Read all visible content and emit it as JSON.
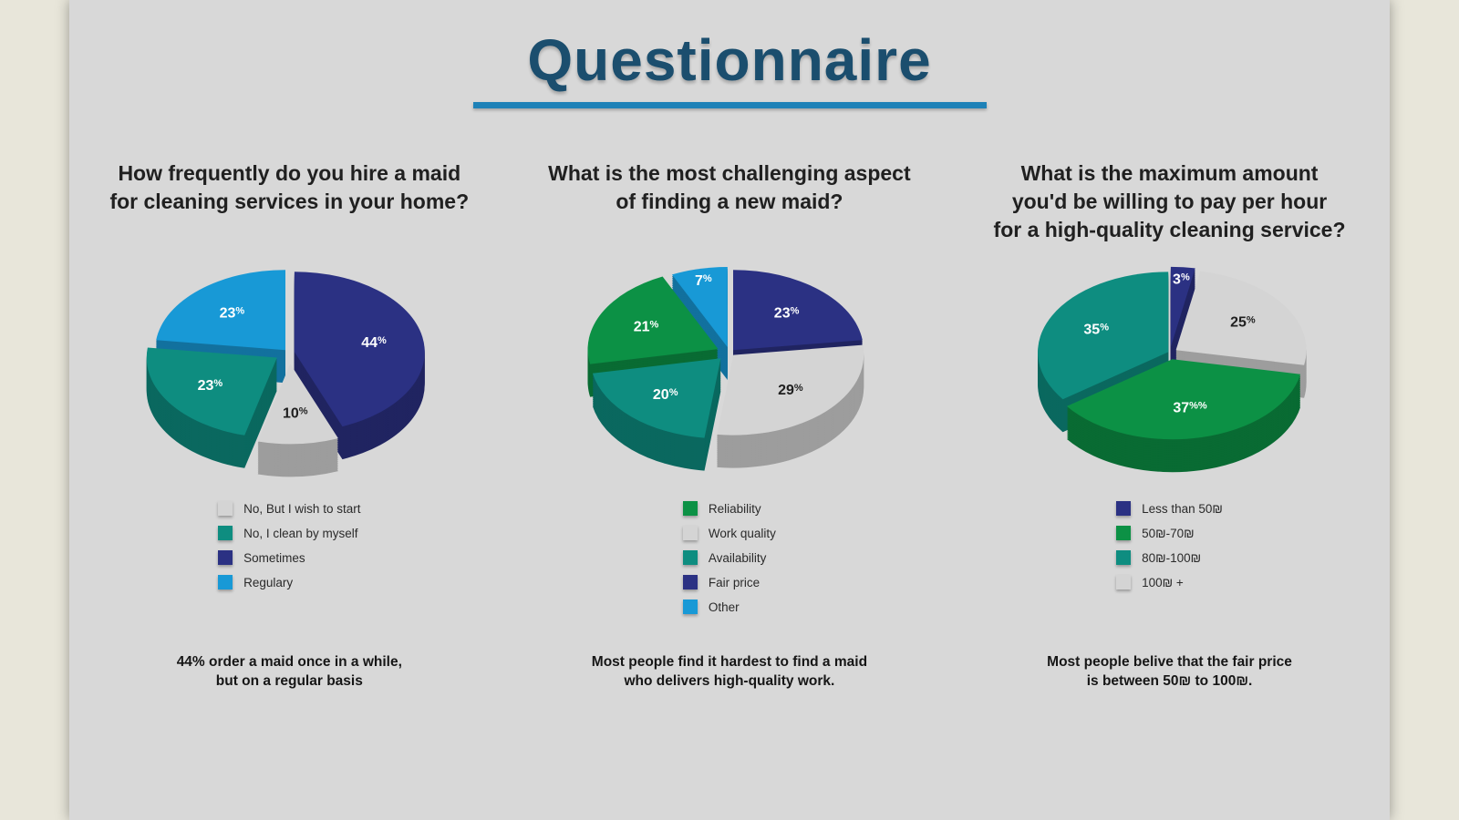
{
  "title": {
    "text": "Questionnaire",
    "color": "#1b4e6e",
    "underline_color": "#1e81b7"
  },
  "background": {
    "workspace": "#e8e6da",
    "slide": "#d8d8d8"
  },
  "columns": [
    {
      "question": [
        "How frequently do you hire a maid",
        "for cleaning services in your home?"
      ],
      "caption": [
        "44% order a maid once in a while,",
        "but on a regular basis"
      ]
    },
    {
      "question": [
        "What is the most challenging aspect",
        "of finding a new maid?"
      ],
      "caption": [
        "Most people find it hardest to find a maid",
        "who delivers high-quality work."
      ]
    },
    {
      "question": [
        "What is the maximum amount",
        "you'd be willing to pay per hour",
        "for a high-quality cleaning service?"
      ],
      "caption": [
        "Most people belive that the fair price",
        "is between 50₪ to 100₪."
      ]
    }
  ],
  "chart_data": [
    {
      "type": "pie",
      "title": "How frequently do you hire a maid for cleaning services in your home?",
      "start_angle": 0,
      "style": "3d-exploded",
      "slices": [
        {
          "label": "Sometimes",
          "value": 44,
          "display": "44%",
          "color": "#2b3183",
          "label_color": "#ffffff",
          "explode": 6
        },
        {
          "label": "No, But I wish to start",
          "value": 10,
          "display": "10%",
          "color": "#d4d4d4",
          "label_color": "#1f1f1f",
          "explode": 20
        },
        {
          "label": "No, I clean by myself",
          "value": 23,
          "display": "23%",
          "color": "#0e8d80",
          "label_color": "#ffffff",
          "explode": 16
        },
        {
          "label": "Regulary",
          "value": 23,
          "display": "23%",
          "color": "#1899d6",
          "label_color": "#ffffff",
          "explode": 6
        }
      ],
      "legend": [
        {
          "label": "No, But I wish to start",
          "color": "#d4d4d4"
        },
        {
          "label": "No, I clean by myself",
          "color": "#0e8d80"
        },
        {
          "label": "Sometimes",
          "color": "#2b3183"
        },
        {
          "label": "Regulary",
          "color": "#1899d6"
        }
      ]
    },
    {
      "type": "pie",
      "title": "What is the most challenging aspect of finding a new maid?",
      "start_angle": 0,
      "style": "3d-exploded",
      "slices": [
        {
          "label": "Fair price",
          "value": 23,
          "display": "23%",
          "color": "#2b3183",
          "label_color": "#ffffff",
          "explode": 6
        },
        {
          "label": "Work quality",
          "value": 29,
          "display": "29%",
          "color": "#d4d4d4",
          "label_color": "#1f1f1f",
          "explode": 6
        },
        {
          "label": "Availability",
          "value": 20,
          "display": "20%",
          "color": "#0e8d80",
          "label_color": "#ffffff",
          "explode": 14
        },
        {
          "label": "Reliability",
          "value": 21,
          "display": "21%",
          "color": "#0c9145",
          "label_color": "#ffffff",
          "explode": 14
        },
        {
          "label": "Other",
          "value": 7,
          "display": "7%",
          "color": "#1899d6",
          "label_color": "#ffffff",
          "explode": 10
        }
      ],
      "legend": [
        {
          "label": "Reliability",
          "color": "#0c9145"
        },
        {
          "label": "Work quality",
          "color": "#d4d4d4"
        },
        {
          "label": "Availability",
          "color": "#0e8d80"
        },
        {
          "label": "Fair price",
          "color": "#2b3183"
        },
        {
          "label": "Other",
          "color": "#1899d6"
        }
      ]
    },
    {
      "type": "pie",
      "title": "What is the maximum amount you'd be willing to pay per hour for a high-quality cleaning service?",
      "start_angle": 0,
      "style": "3d-exploded",
      "slices": [
        {
          "label": "Less than 50₪",
          "value": 3,
          "display": "3%",
          "color": "#2b3183",
          "label_color": "#ffffff",
          "explode": 10
        },
        {
          "label": "100₪ +",
          "value": 25,
          "display": "25%",
          "color": "#d4d4d4",
          "label_color": "#1f1f1f",
          "explode": 8
        },
        {
          "label": "50₪-70₪",
          "value": 37,
          "display": "37%%",
          "color": "#0c9145",
          "label_color": "#ffffff",
          "explode": 12
        },
        {
          "label": "80₪-100₪",
          "value": 35,
          "display": "35%",
          "color": "#0e8d80",
          "label_color": "#ffffff",
          "explode": 2
        }
      ],
      "legend": [
        {
          "label": "Less than 50₪",
          "color": "#2b3183"
        },
        {
          "label": "50₪-70₪",
          "color": "#0c9145"
        },
        {
          "label": "80₪-100₪",
          "color": "#0e8d80"
        },
        {
          "label": "100₪ +",
          "color": "#d4d4d4"
        }
      ]
    }
  ]
}
